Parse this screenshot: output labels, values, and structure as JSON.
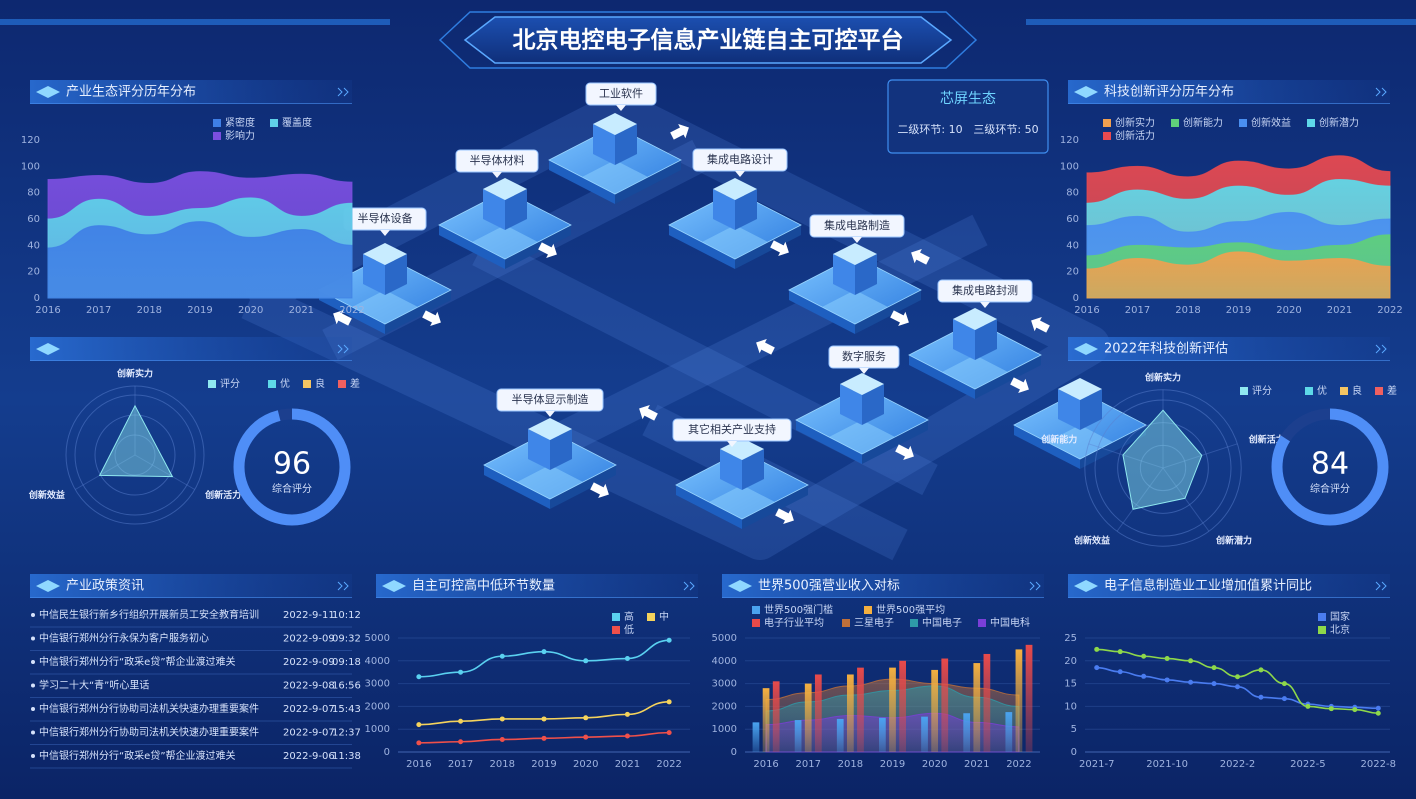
{
  "header": {
    "title": "北京电控电子信息产业链自主可控平台"
  },
  "chart_data": [
    {
      "type": "area",
      "title": "产业生态评分历年分布",
      "categories": [
        "2016",
        "2017",
        "2018",
        "2019",
        "2020",
        "2021",
        "2022"
      ],
      "series": [
        {
          "name": "紧密度",
          "color": "#3f7fe6",
          "values": [
            38,
            55,
            48,
            58,
            46,
            52,
            40
          ]
        },
        {
          "name": "覆盖度",
          "color": "#5fd0e8",
          "values": [
            60,
            75,
            62,
            68,
            76,
            62,
            72
          ]
        },
        {
          "name": "影响力",
          "color": "#7b4fe0",
          "values": [
            90,
            93,
            87,
            96,
            91,
            94,
            88
          ]
        }
      ],
      "ylim": [
        0,
        120
      ],
      "yticks": [
        0,
        20,
        40,
        60,
        80,
        100,
        120
      ]
    },
    {
      "type": "radar",
      "categories": [
        "创新实力",
        "创新活力",
        "创新效益"
      ],
      "series": [
        {
          "name": "评分",
          "color": "#8fe8f0",
          "values": [
            82,
            72,
            68
          ]
        }
      ],
      "levels": [
        {
          "name": "优",
          "color": "#5ed9e8"
        },
        {
          "name": "良",
          "color": "#f5c563"
        },
        {
          "name": "差",
          "color": "#f06060"
        }
      ],
      "rlim": [
        0,
        100
      ],
      "score": 96,
      "score_label": "综合评分"
    },
    {
      "type": "area",
      "title": "科技创新评分历年分布",
      "categories": [
        "2016",
        "2017",
        "2018",
        "2019",
        "2020",
        "2021",
        "2022"
      ],
      "series": [
        {
          "name": "创新实力",
          "color": "#f0a050",
          "values": [
            22,
            30,
            25,
            35,
            28,
            30,
            24
          ]
        },
        {
          "name": "创新能力",
          "color": "#5fd07a",
          "values": [
            32,
            40,
            38,
            42,
            36,
            40,
            48
          ]
        },
        {
          "name": "创新效益",
          "color": "#4a8ff0",
          "values": [
            55,
            62,
            50,
            58,
            65,
            55,
            60
          ]
        },
        {
          "name": "创新潜力",
          "color": "#5fd8e8",
          "values": [
            72,
            82,
            75,
            85,
            78,
            90,
            85
          ]
        },
        {
          "name": "创新活力",
          "color": "#e84a50",
          "values": [
            95,
            100,
            92,
            104,
            98,
            108,
            96
          ]
        }
      ],
      "ylim": [
        0,
        120
      ],
      "yticks": [
        0,
        20,
        40,
        60,
        80,
        100,
        120
      ]
    },
    {
      "type": "radar",
      "title": "2022年科技创新评估",
      "categories": [
        "创新实力",
        "创新活力",
        "创新潜力",
        "创新效益",
        "创新能力"
      ],
      "series": [
        {
          "name": "评分",
          "color": "#8fe8f0",
          "values": [
            85,
            60,
            55,
            75,
            62
          ]
        }
      ],
      "levels": [
        {
          "name": "优",
          "color": "#5ed9e8"
        },
        {
          "name": "良",
          "color": "#f5c563"
        },
        {
          "name": "差",
          "color": "#f06060"
        }
      ],
      "rlim": [
        0,
        100
      ],
      "score": 84,
      "score_label": "综合评分"
    },
    {
      "type": "line",
      "title": "自主可控高中低环节数量",
      "categories": [
        "2016",
        "2017",
        "2018",
        "2019",
        "2020",
        "2021",
        "2022"
      ],
      "series": [
        {
          "name": "高",
          "color": "#5ad1f0",
          "values": [
            3300,
            3500,
            4200,
            4400,
            4000,
            4100,
            4900
          ]
        },
        {
          "name": "中",
          "color": "#f5d35c",
          "values": [
            1200,
            1350,
            1450,
            1450,
            1500,
            1650,
            2200
          ]
        },
        {
          "name": "低",
          "color": "#f0504a",
          "values": [
            400,
            450,
            550,
            600,
            650,
            700,
            850
          ]
        }
      ],
      "ylim": [
        0,
        5000
      ],
      "yticks": [
        0,
        1000,
        2000,
        3000,
        4000,
        5000
      ],
      "grid": true
    },
    {
      "type": "bar",
      "title": "世界500强营业收入对标",
      "categories": [
        "2016",
        "2017",
        "2018",
        "2019",
        "2020",
        "2021",
        "2022"
      ],
      "series": [
        {
          "name": "世界500强门槛",
          "color": "#4aa3f0",
          "mark": "bar",
          "values": [
            1300,
            1400,
            1450,
            1500,
            1550,
            1700,
            1750
          ]
        },
        {
          "name": "世界500强平均",
          "color": "#f5b040",
          "mark": "bar",
          "values": [
            2800,
            3000,
            3400,
            3700,
            3600,
            3900,
            4500
          ]
        },
        {
          "name": "电子行业平均",
          "color": "#e84a4a",
          "mark": "bar",
          "values": [
            3100,
            3400,
            3700,
            4000,
            4100,
            4300,
            4700
          ]
        },
        {
          "name": "三星电子",
          "color": "#c0703a",
          "mark": "area",
          "values": [
            2300,
            2600,
            2900,
            3200,
            3000,
            2800,
            2500
          ]
        },
        {
          "name": "中国电子",
          "color": "#2e9aa8",
          "mark": "area",
          "values": [
            1800,
            2200,
            2500,
            2700,
            2900,
            2400,
            2000
          ]
        },
        {
          "name": "中国电科",
          "color": "#7a3fd8",
          "mark": "area",
          "values": [
            1200,
            1400,
            1600,
            1500,
            1700,
            1300,
            1100
          ]
        }
      ],
      "ylim": [
        0,
        5000
      ],
      "yticks": [
        0,
        1000,
        2000,
        3000,
        4000,
        5000
      ],
      "grid": true
    },
    {
      "type": "line",
      "title": "电子信息制造业工业增加值累计同比",
      "categories": [
        "2021-7",
        null,
        null,
        "2021-10",
        null,
        null,
        "2022-2",
        null,
        null,
        "2022-5",
        null,
        null,
        "2022-8"
      ],
      "series": [
        {
          "name": "国家",
          "color": "#4a7cf0",
          "values": [
            18.5,
            17.6,
            16.6,
            15.8,
            15.3,
            15,
            14.3,
            12,
            11.7,
            10.5,
            10,
            9.8,
            9.6
          ]
        },
        {
          "name": "北京",
          "color": "#8ed84a",
          "values": [
            22.5,
            22,
            21,
            20.5,
            20,
            18.5,
            16.5,
            18,
            15,
            10,
            9.5,
            9.3,
            8.5
          ]
        }
      ],
      "ylim": [
        0,
        25
      ],
      "yticks": [
        0,
        5,
        10,
        15,
        20,
        25
      ],
      "grid": true
    }
  ],
  "news": {
    "title": "产业政策资讯",
    "items": [
      {
        "text": "中信民生银行新乡行组织开展新员工安全教育培训",
        "date": "2022-9-11",
        "time": "10:12"
      },
      {
        "text": "中信银行郑州分行永保为客户服务初心",
        "date": "2022-9-09",
        "time": "09:32"
      },
      {
        "text": "中信银行郑州分行“政采e贷”帮企业渡过难关",
        "date": "2022-9-09",
        "time": "09:18"
      },
      {
        "text": "学习二十大“青”听心里话",
        "date": "2022-9-08",
        "time": "16:56"
      },
      {
        "text": "中信银行郑州分行协助司法机关快速办理重要案件",
        "date": "2022-9-07",
        "time": "15:43"
      },
      {
        "text": "中信银行郑州分行协助司法机关快速办理重要案件",
        "date": "2022-9-07",
        "time": "12:37"
      },
      {
        "text": "中信银行郑州分行“政采e贷”帮企业渡过难关",
        "date": "2022-9-06",
        "time": "11:38"
      }
    ]
  },
  "diagram": {
    "info": {
      "title": "芯屏生态",
      "level2": "二级环节: 10",
      "level3": "三级环节: 50"
    },
    "nodes": [
      {
        "label": "半导体设备"
      },
      {
        "label": "半导体材料"
      },
      {
        "label": "工业软件"
      },
      {
        "label": "集成电路设计"
      },
      {
        "label": "集成电路制造"
      },
      {
        "label": "集成电路封测"
      },
      {
        "label": "数字服务"
      },
      {
        "label": "半导体显示制造"
      },
      {
        "label": "其它相关产业支持"
      }
    ]
  }
}
